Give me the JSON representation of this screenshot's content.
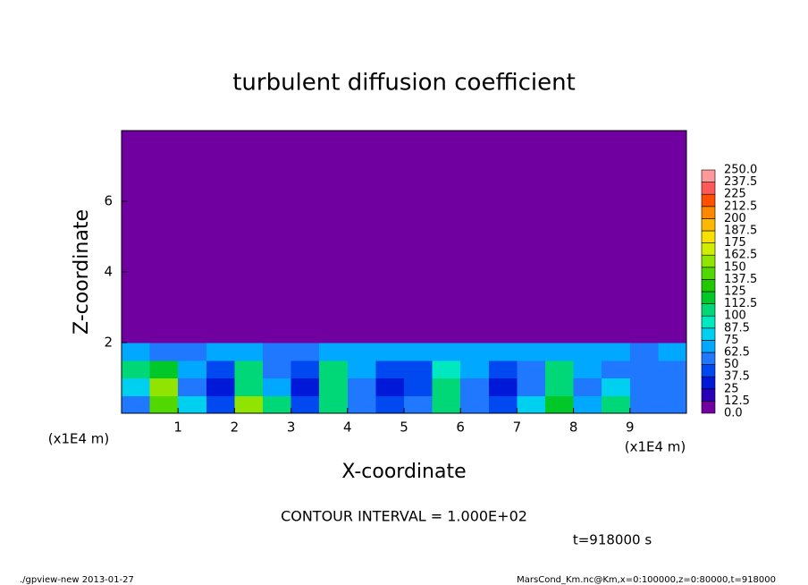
{
  "chart_data": {
    "type": "heatmap",
    "title": "turbulent diffusion coefficient",
    "xlabel": "X-coordinate",
    "ylabel": "Z-coordinate",
    "xlabel_unit": "(x1E4 m)",
    "ylabel_unit": "(x1E4 m)",
    "annotation": "CONTOUR INTERVAL = 1.000E+02",
    "time_label": "t=918000 s",
    "footer_left": "./gpview-new  2013-01-27",
    "footer_right": "MarsCond_Km.nc@Km,x=0:100000,z=0:80000,t=918000",
    "xlim": [
      0,
      10
    ],
    "xticks": [
      1,
      2,
      3,
      4,
      5,
      6,
      7,
      8,
      9
    ],
    "ylim": [
      0,
      8
    ],
    "yticks": [
      2,
      4,
      6
    ],
    "x": [
      0.25,
      0.75,
      1.25,
      1.75,
      2.25,
      2.75,
      3.25,
      3.75,
      4.25,
      4.75,
      5.25,
      5.75,
      6.25,
      6.75,
      7.25,
      7.75,
      8.25,
      8.75,
      9.25,
      9.75
    ],
    "y": [
      0.25,
      0.75,
      1.25,
      1.75,
      2.25,
      2.75,
      3.25,
      3.75,
      4.25,
      4.75,
      5.25,
      5.75,
      6.25,
      6.75,
      7.25,
      7.75
    ],
    "values": [
      [
        60,
        140,
        75,
        40,
        150,
        110,
        45,
        110,
        60,
        45,
        50,
        105,
        60,
        45,
        75,
        115,
        70,
        100,
        55,
        60
      ],
      [
        80,
        150,
        60,
        35,
        110,
        70,
        35,
        100,
        55,
        35,
        40,
        100,
        55,
        35,
        60,
        110,
        60,
        75,
        50,
        50
      ],
      [
        100,
        120,
        70,
        45,
        100,
        60,
        45,
        105,
        70,
        40,
        45,
        95,
        70,
        40,
        60,
        110,
        70,
        60,
        60,
        60
      ],
      [
        65,
        60,
        60,
        65,
        65,
        60,
        60,
        70,
        70,
        65,
        65,
        65,
        65,
        70,
        65,
        70,
        70,
        65,
        60,
        65
      ],
      [
        0,
        0,
        0,
        0,
        0,
        0,
        0,
        0,
        0,
        0,
        0,
        0,
        0,
        0,
        0,
        0,
        0,
        0,
        0,
        0
      ],
      [
        0,
        0,
        0,
        0,
        0,
        0,
        0,
        0,
        0,
        0,
        0,
        0,
        0,
        0,
        0,
        0,
        0,
        0,
        0,
        0
      ],
      [
        0,
        0,
        0,
        0,
        0,
        0,
        0,
        0,
        0,
        0,
        0,
        0,
        0,
        0,
        0,
        0,
        0,
        0,
        0,
        0
      ],
      [
        0,
        0,
        0,
        0,
        0,
        0,
        0,
        0,
        0,
        0,
        0,
        0,
        0,
        0,
        0,
        0,
        0,
        0,
        0,
        0
      ],
      [
        0,
        0,
        0,
        0,
        0,
        0,
        0,
        0,
        0,
        0,
        0,
        0,
        0,
        0,
        0,
        0,
        0,
        0,
        0,
        0
      ],
      [
        0,
        0,
        0,
        0,
        0,
        0,
        0,
        0,
        0,
        0,
        0,
        0,
        0,
        0,
        0,
        0,
        0,
        0,
        0,
        0
      ],
      [
        0,
        0,
        0,
        0,
        0,
        0,
        0,
        0,
        0,
        0,
        0,
        0,
        0,
        0,
        0,
        0,
        0,
        0,
        0,
        0
      ],
      [
        0,
        0,
        0,
        0,
        0,
        0,
        0,
        0,
        0,
        0,
        0,
        0,
        0,
        0,
        0,
        0,
        0,
        0,
        0,
        0
      ],
      [
        0,
        0,
        0,
        0,
        0,
        0,
        0,
        0,
        0,
        0,
        0,
        0,
        0,
        0,
        0,
        0,
        0,
        0,
        0,
        0
      ],
      [
        0,
        0,
        0,
        0,
        0,
        0,
        0,
        0,
        0,
        0,
        0,
        0,
        0,
        0,
        0,
        0,
        0,
        0,
        0,
        0
      ],
      [
        0,
        0,
        0,
        0,
        0,
        0,
        0,
        0,
        0,
        0,
        0,
        0,
        0,
        0,
        0,
        0,
        0,
        0,
        0,
        0
      ],
      [
        0,
        0,
        0,
        0,
        0,
        0,
        0,
        0,
        0,
        0,
        0,
        0,
        0,
        0,
        0,
        0,
        0,
        0,
        0,
        0
      ]
    ],
    "levels": [
      {
        "value": 0,
        "label": "0.0"
      },
      12.5,
      25,
      37.5,
      50,
      62.5,
      75,
      87.5,
      100,
      112.5,
      125,
      137.5,
      150,
      162.5,
      175,
      187.5,
      200,
      212.5,
      225,
      237.5,
      {
        "value": 250,
        "label": "250.0"
      }
    ],
    "colors": [
      "#7000a0",
      "#2800b8",
      "#0018d8",
      "#0048f0",
      "#2078ff",
      "#00a8ff",
      "#00d0f0",
      "#00e8c0",
      "#00d878",
      "#00c828",
      "#20c800",
      "#50d800",
      "#90e400",
      "#d0ec00",
      "#f8e000",
      "#ffb800",
      "#ff8800",
      "#ff5000",
      "#ff5858",
      "#ff9898"
    ]
  }
}
